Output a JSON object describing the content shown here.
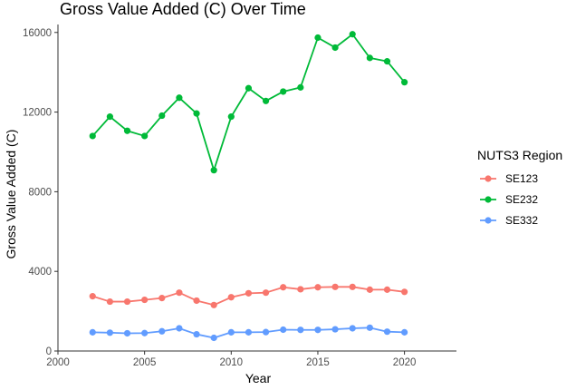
{
  "chart_data": {
    "type": "line",
    "title": "Gross Value Added (C) Over Time",
    "xlabel": "Year",
    "ylabel": "Gross Value Added (C)",
    "xlim": [
      2000,
      2023
    ],
    "ylim": [
      0,
      16400
    ],
    "x_ticks": [
      2000,
      2005,
      2010,
      2015,
      2020
    ],
    "y_ticks": [
      0,
      4000,
      8000,
      12000,
      16000
    ],
    "grid": false,
    "legend_title": "NUTS3 Region",
    "legend_position": "right",
    "x": [
      2002,
      2003,
      2004,
      2005,
      2006,
      2007,
      2008,
      2009,
      2010,
      2011,
      2012,
      2013,
      2014,
      2015,
      2016,
      2017,
      2018,
      2019,
      2020
    ],
    "series": [
      {
        "name": "SE123",
        "color": "#F8766D",
        "values": [
          2750,
          2480,
          2480,
          2570,
          2660,
          2930,
          2530,
          2310,
          2700,
          2900,
          2930,
          3200,
          3100,
          3200,
          3220,
          3220,
          3080,
          3080,
          2970
        ]
      },
      {
        "name": "SE232",
        "color": "#00BA38",
        "values": [
          10800,
          11770,
          11060,
          10800,
          11820,
          12720,
          11930,
          9080,
          11770,
          13200,
          12560,
          13030,
          13240,
          15740,
          15240,
          15910,
          14720,
          14550,
          13500
        ]
      },
      {
        "name": "SE332",
        "color": "#619CFF",
        "values": [
          940,
          920,
          890,
          900,
          990,
          1140,
          840,
          660,
          940,
          940,
          950,
          1070,
          1060,
          1060,
          1090,
          1140,
          1170,
          970,
          940
        ]
      }
    ]
  }
}
